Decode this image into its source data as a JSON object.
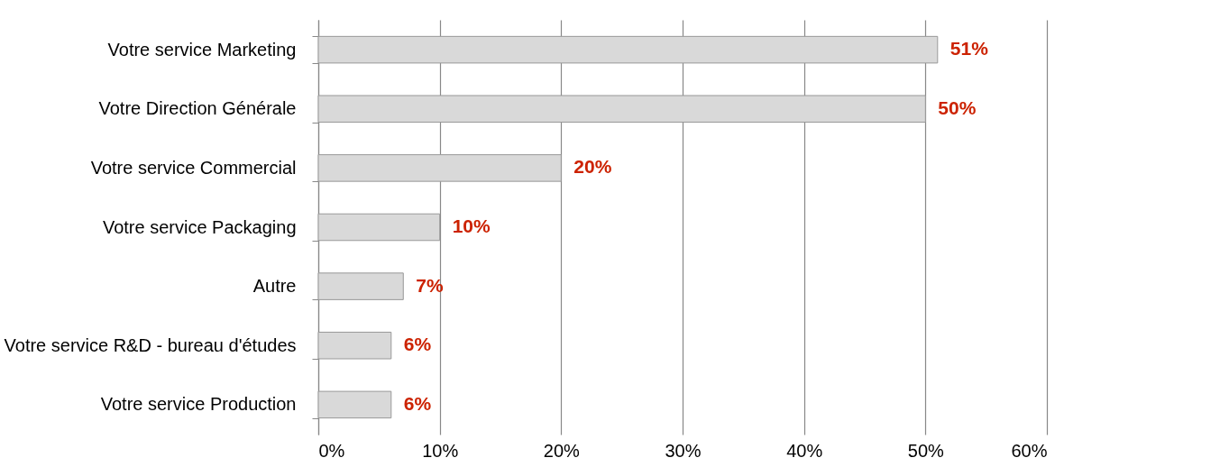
{
  "chart_data": {
    "type": "bar",
    "orientation": "horizontal",
    "categories": [
      "Votre service Marketing",
      "Votre Direction Générale",
      "Votre service Commercial",
      "Votre service Packaging",
      "Autre",
      "Votre service R&D - bureau d'études",
      "Votre service Production"
    ],
    "values": [
      51,
      50,
      20,
      10,
      7,
      6,
      6
    ],
    "value_labels": [
      "51%",
      "50%",
      "20%",
      "10%",
      "7%",
      "6%",
      "6%"
    ],
    "color": "#d9d9d9",
    "xlim": [
      0,
      60
    ],
    "xticks": [
      {
        "value": 0,
        "label": "0%"
      },
      {
        "value": 10,
        "label": "10%"
      },
      {
        "value": 20,
        "label": "20%"
      },
      {
        "value": 30,
        "label": "30%"
      },
      {
        "value": 40,
        "label": "40%"
      },
      {
        "value": 50,
        "label": "50%"
      },
      {
        "value": 60,
        "label": "60%"
      }
    ],
    "grid": "x"
  }
}
